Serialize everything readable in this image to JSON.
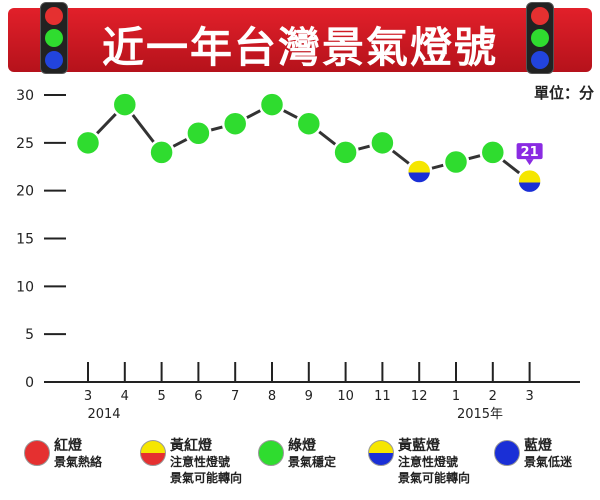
{
  "header": {
    "title": "近一年台灣景氣燈號"
  },
  "unit_label": "單位：分",
  "chart_data": {
    "type": "line",
    "title": "近一年台灣景氣燈號",
    "ylabel": "單位：分",
    "ylim": [
      0,
      30
    ],
    "yticks": [
      0,
      5,
      10,
      15,
      20,
      25,
      30
    ],
    "categories": [
      "3",
      "4",
      "5",
      "6",
      "7",
      "8",
      "9",
      "10",
      "11",
      "12",
      "1",
      "2",
      "3"
    ],
    "year_labels": [
      {
        "index": 0,
        "label": "2014"
      },
      {
        "index": 10,
        "label": "2015年"
      }
    ],
    "series": [
      {
        "values": [
          25,
          29,
          24,
          26,
          27,
          29,
          27,
          24,
          25,
          22,
          23,
          24,
          21
        ],
        "lights": [
          "green",
          "green",
          "green",
          "green",
          "green",
          "green",
          "green",
          "green",
          "green",
          "yellow-blue",
          "green",
          "green",
          "yellow-blue"
        ]
      }
    ],
    "callout": {
      "index": 12,
      "label": "21"
    },
    "colors": {
      "red": "#e53030",
      "yellow": "#f5e600",
      "green": "#2fdc2f",
      "blue": "#1a2fd6",
      "callout": "#8a2be2"
    }
  },
  "legend": [
    {
      "icon": "red-light-icon",
      "kind": "red",
      "label": "紅燈",
      "desc": [
        "景氣熱絡"
      ]
    },
    {
      "icon": "yellow-red-light-icon",
      "kind": "yellow-red",
      "label": "黃紅燈",
      "desc": [
        "注意性燈號",
        "景氣可能轉向"
      ]
    },
    {
      "icon": "green-light-icon",
      "kind": "green",
      "label": "綠燈",
      "desc": [
        "景氣穩定"
      ]
    },
    {
      "icon": "yellow-blue-light-icon",
      "kind": "yellow-blue",
      "label": "黃藍燈",
      "desc": [
        "注意性燈號",
        "景氣可能轉向"
      ]
    },
    {
      "icon": "blue-light-icon",
      "kind": "blue",
      "label": "藍燈",
      "desc": [
        "景氣低迷"
      ]
    }
  ]
}
